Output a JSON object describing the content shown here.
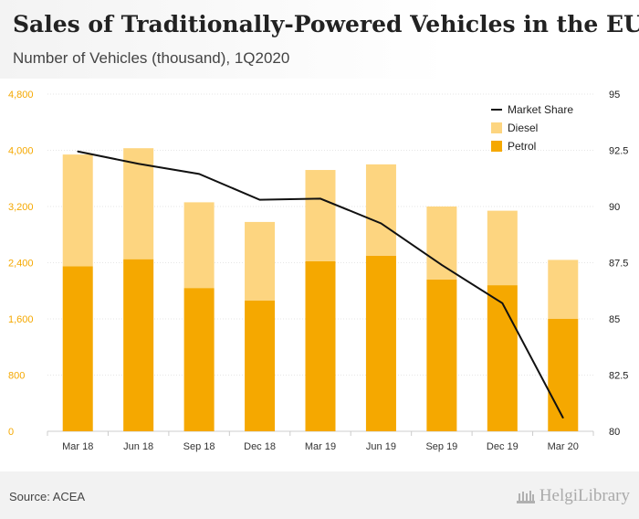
{
  "header": {
    "title": "Sales of Traditionally-Powered Vehicles in the EU",
    "subtitle": "Number of Vehicles (thousand), 1Q2020"
  },
  "footer": {
    "source": "Source: ACEA",
    "logo_text": "HelgiLibrary"
  },
  "chart_data": {
    "type": "bar",
    "stacked": true,
    "categories": [
      "Mar 18",
      "Jun 18",
      "Sep 18",
      "Dec 18",
      "Mar 19",
      "Jun 19",
      "Sep 19",
      "Dec 19",
      "Mar 20"
    ],
    "series": [
      {
        "name": "Petrol",
        "axis": "left",
        "color": "#f5a800",
        "values": [
          2350,
          2450,
          2040,
          1860,
          2420,
          2500,
          2160,
          2080,
          1600
        ]
      },
      {
        "name": "Diesel",
        "axis": "left",
        "color": "#fdd580",
        "values": [
          1590,
          1580,
          1220,
          1120,
          1300,
          1300,
          1040,
          1060,
          840
        ]
      },
      {
        "name": "Market Share",
        "axis": "right",
        "type": "line",
        "color": "#111111",
        "values": [
          92.45,
          91.9,
          91.45,
          90.3,
          90.35,
          89.25,
          87.4,
          85.7,
          80.6
        ]
      }
    ],
    "legend_order": [
      "Market Share",
      "Diesel",
      "Petrol"
    ],
    "ylim_left": [
      0,
      4800
    ],
    "yticks_left": [
      "0",
      "800",
      "1,600",
      "2,400",
      "3,200",
      "4,000",
      "4,800"
    ],
    "ylim_right": [
      80,
      95
    ],
    "yticks_right": [
      "80",
      "82.5",
      "85",
      "87.5",
      "90",
      "92.5",
      "95"
    ],
    "legend_position": "top-right",
    "grid": "horizontal"
  }
}
